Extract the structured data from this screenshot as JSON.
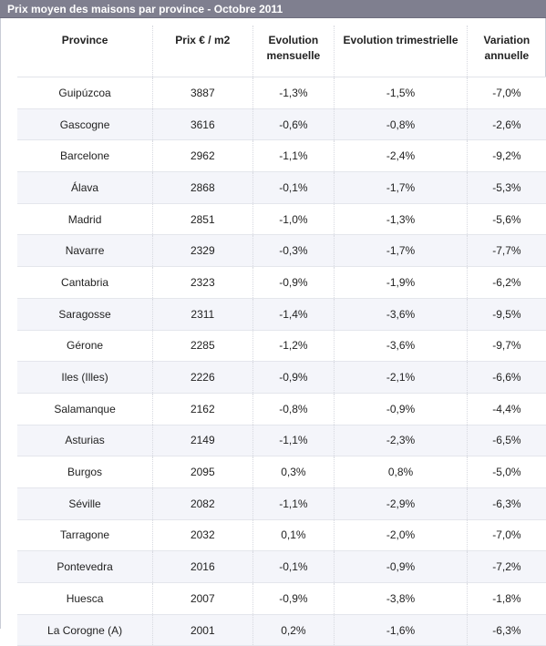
{
  "title": "Prix moyen des maisons par province - Octobre 2011",
  "table": {
    "headers": {
      "province": "Province",
      "prix": "Prix € / m2",
      "evol_mensuelle": "Evolution mensuelle",
      "evol_trimestrielle": "Evolution trimestrielle",
      "variation_annuelle": "Variation annuelle"
    },
    "rows": [
      {
        "province": "Guipúzcoa",
        "prix": "3887",
        "mensuelle": "-1,3%",
        "trimestrielle": "-1,5%",
        "annuelle": "-7,0%"
      },
      {
        "province": "Gascogne",
        "prix": "3616",
        "mensuelle": "-0,6%",
        "trimestrielle": "-0,8%",
        "annuelle": "-2,6%"
      },
      {
        "province": "Barcelone",
        "prix": "2962",
        "mensuelle": "-1,1%",
        "trimestrielle": "-2,4%",
        "annuelle": "-9,2%"
      },
      {
        "province": "Álava",
        "prix": "2868",
        "mensuelle": "-0,1%",
        "trimestrielle": "-1,7%",
        "annuelle": "-5,3%"
      },
      {
        "province": "Madrid",
        "prix": "2851",
        "mensuelle": "-1,0%",
        "trimestrielle": "-1,3%",
        "annuelle": "-5,6%"
      },
      {
        "province": "Navarre",
        "prix": "2329",
        "mensuelle": "-0,3%",
        "trimestrielle": "-1,7%",
        "annuelle": "-7,7%"
      },
      {
        "province": "Cantabria",
        "prix": "2323",
        "mensuelle": "-0,9%",
        "trimestrielle": "-1,9%",
        "annuelle": "-6,2%"
      },
      {
        "province": "Saragosse",
        "prix": "2311",
        "mensuelle": "-1,4%",
        "trimestrielle": "-3,6%",
        "annuelle": "-9,5%"
      },
      {
        "province": "Gérone",
        "prix": "2285",
        "mensuelle": "-1,2%",
        "trimestrielle": "-3,6%",
        "annuelle": "-9,7%"
      },
      {
        "province": "Iles (Illes)",
        "prix": "2226",
        "mensuelle": "-0,9%",
        "trimestrielle": "-2,1%",
        "annuelle": "-6,6%"
      },
      {
        "province": "Salamanque",
        "prix": "2162",
        "mensuelle": "-0,8%",
        "trimestrielle": "-0,9%",
        "annuelle": "-4,4%"
      },
      {
        "province": "Asturias",
        "prix": "2149",
        "mensuelle": "-1,1%",
        "trimestrielle": "-2,3%",
        "annuelle": "-6,5%"
      },
      {
        "province": "Burgos",
        "prix": "2095",
        "mensuelle": "0,3%",
        "trimestrielle": "0,8%",
        "annuelle": "-5,0%"
      },
      {
        "province": "Séville",
        "prix": "2082",
        "mensuelle": "-1,1%",
        "trimestrielle": "-2,9%",
        "annuelle": "-6,3%"
      },
      {
        "province": "Tarragone",
        "prix": "2032",
        "mensuelle": "0,1%",
        "trimestrielle": "-2,0%",
        "annuelle": "-7,0%"
      },
      {
        "province": "Pontevedra",
        "prix": "2016",
        "mensuelle": "-0,1%",
        "trimestrielle": "-0,9%",
        "annuelle": "-7,2%"
      },
      {
        "province": "Huesca",
        "prix": "2007",
        "mensuelle": "-0,9%",
        "trimestrielle": "-3,8%",
        "annuelle": "-1,8%"
      },
      {
        "province": "La Corogne (A)",
        "prix": "2001",
        "mensuelle": "0,2%",
        "trimestrielle": "-1,6%",
        "annuelle": "-6,3%"
      }
    ]
  },
  "colors": {
    "title_bar": "#7f7f8f",
    "row_alt": "#f4f5fa"
  }
}
